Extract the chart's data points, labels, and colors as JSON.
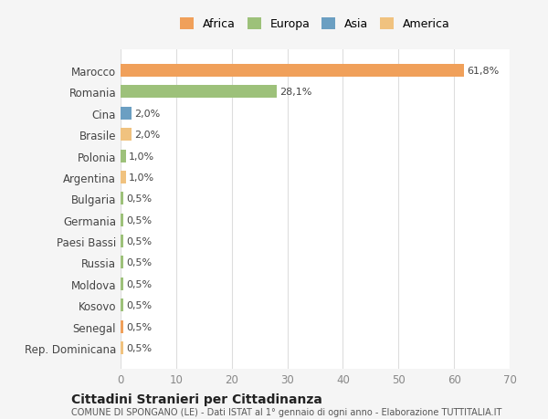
{
  "categories": [
    "Rep. Dominicana",
    "Senegal",
    "Kosovo",
    "Moldova",
    "Russia",
    "Paesi Bassi",
    "Germania",
    "Bulgaria",
    "Argentina",
    "Polonia",
    "Brasile",
    "Cina",
    "Romania",
    "Marocco"
  ],
  "values": [
    0.5,
    0.5,
    0.5,
    0.5,
    0.5,
    0.5,
    0.5,
    0.5,
    1.0,
    1.0,
    2.0,
    2.0,
    28.1,
    61.8
  ],
  "labels": [
    "0,5%",
    "0,5%",
    "0,5%",
    "0,5%",
    "0,5%",
    "0,5%",
    "0,5%",
    "0,5%",
    "1,0%",
    "1,0%",
    "2,0%",
    "2,0%",
    "28,1%",
    "61,8%"
  ],
  "colors": [
    "#f0c27f",
    "#f0a05a",
    "#9dc17a",
    "#9dc17a",
    "#9dc17a",
    "#9dc17a",
    "#9dc17a",
    "#9dc17a",
    "#f0c27f",
    "#9dc17a",
    "#f0c27f",
    "#6b9fc2",
    "#9dc17a",
    "#f0a05a"
  ],
  "legend_labels": [
    "Africa",
    "Europa",
    "Asia",
    "America"
  ],
  "legend_colors": [
    "#f0a05a",
    "#9dc17a",
    "#6b9fc2",
    "#f0c27f"
  ],
  "title": "Cittadini Stranieri per Cittadinanza",
  "subtitle": "COMUNE DI SPONGANO (LE) - Dati ISTAT al 1° gennaio di ogni anno - Elaborazione TUTTITALIA.IT",
  "xlim": [
    0,
    70
  ],
  "xticks": [
    0,
    10,
    20,
    30,
    40,
    50,
    60,
    70
  ],
  "bg_color": "#f5f5f5",
  "bar_bg_color": "#ffffff",
  "grid_color": "#dddddd"
}
